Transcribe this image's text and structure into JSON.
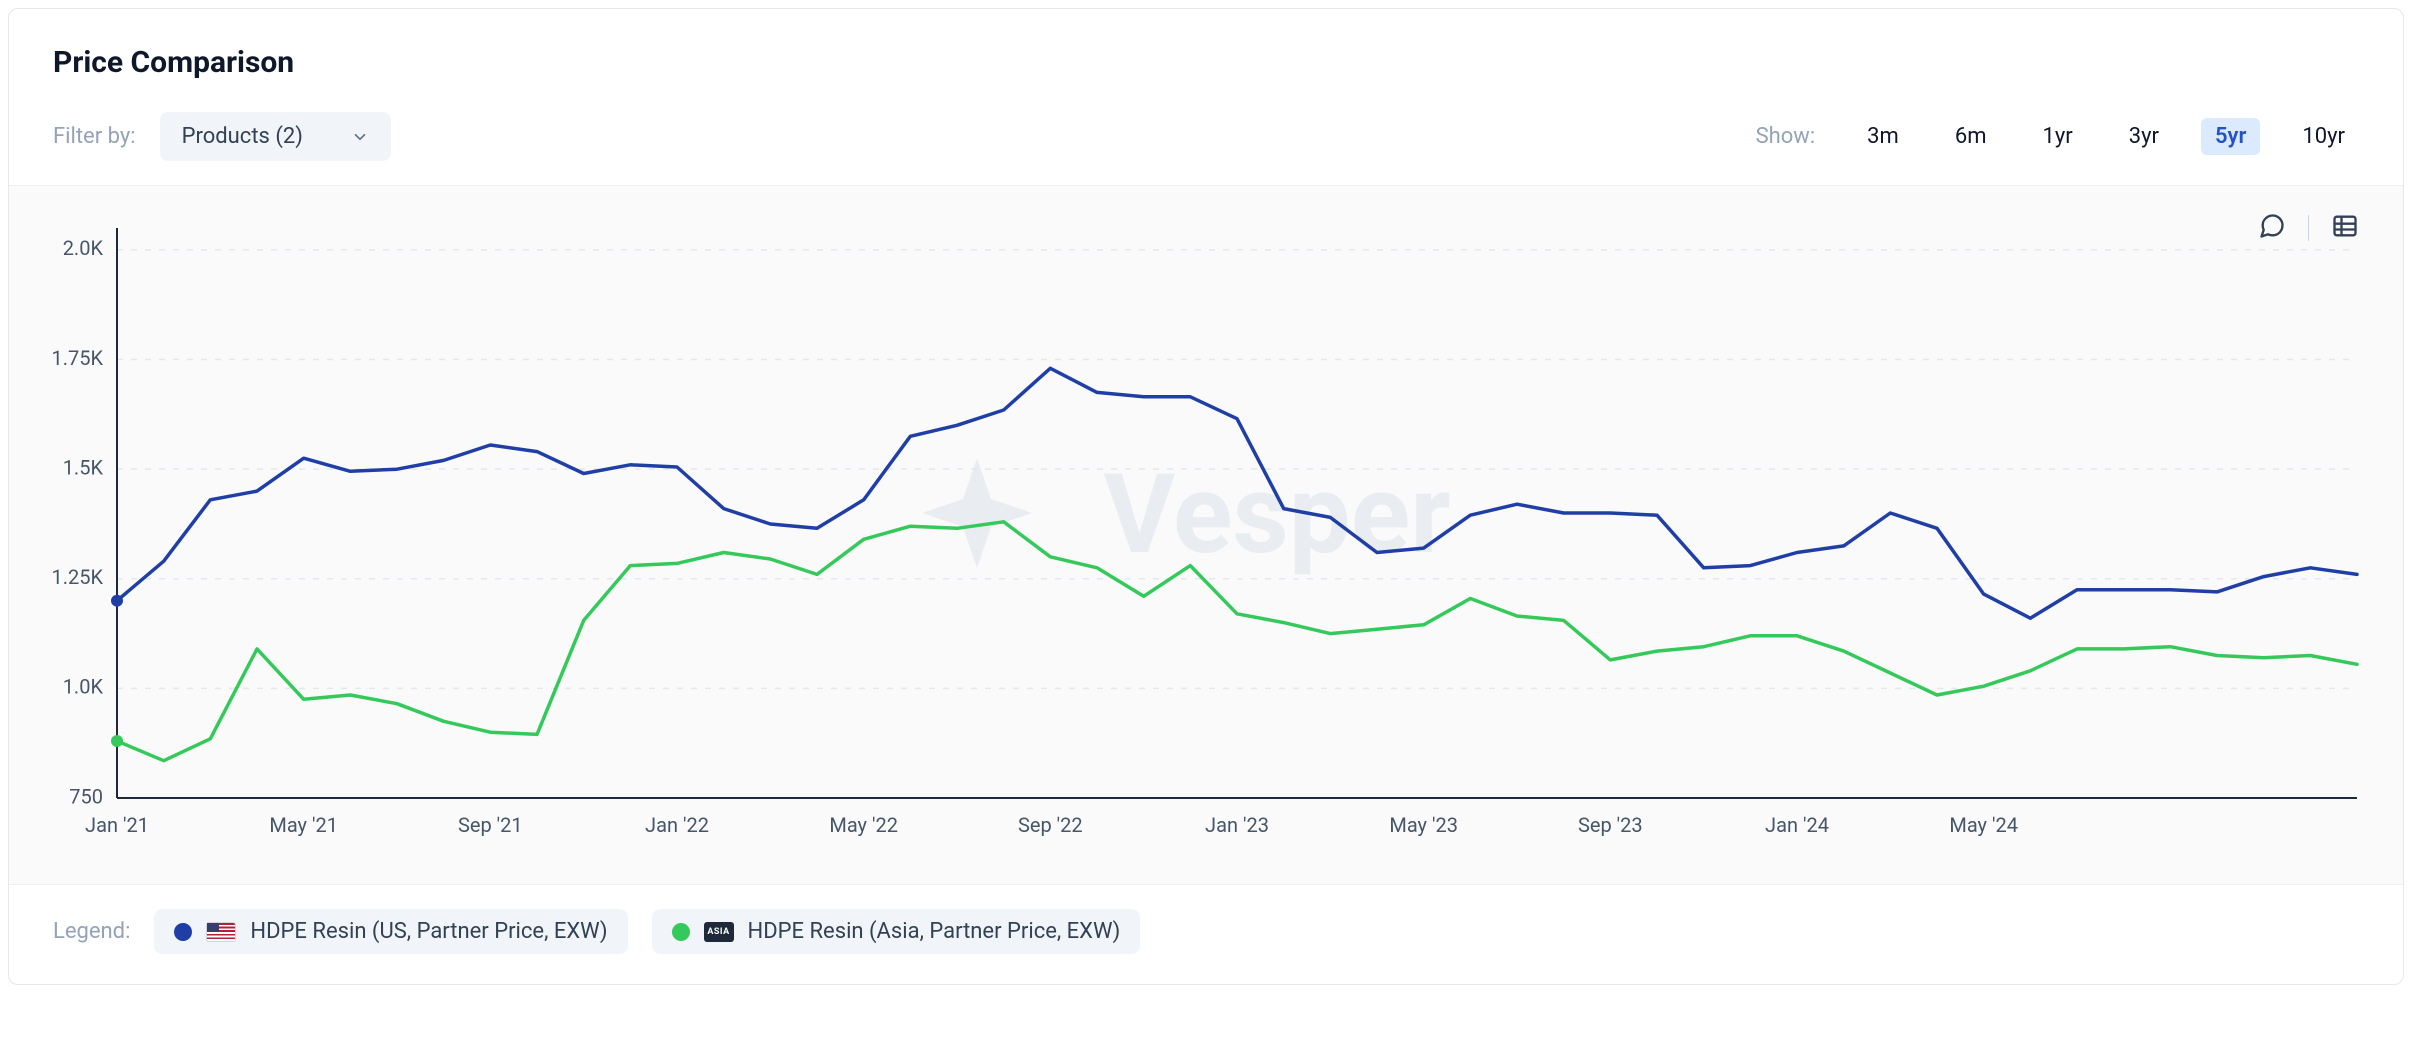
{
  "title": "Price Comparison",
  "filter": {
    "label": "Filter by:",
    "dropdown_label": "Products (2)"
  },
  "range_selector": {
    "label": "Show:",
    "options": [
      "3m",
      "6m",
      "1yr",
      "3yr",
      "5yr",
      "10yr"
    ],
    "selected": "5yr"
  },
  "chart": {
    "type": "line",
    "background_color": "#fafafa",
    "grid_color": "#e2e8f0",
    "axis_color": "#1e293b",
    "tick_font_size": 20,
    "tick_color": "#475569",
    "watermark_text": "Vesper",
    "watermark_color": "#e9edf2",
    "y_axis": {
      "min": 750,
      "max": 2050,
      "ticks": [
        {
          "value": 750,
          "label": "750"
        },
        {
          "value": 1000,
          "label": "1.0K"
        },
        {
          "value": 1250,
          "label": "1.25K"
        },
        {
          "value": 1500,
          "label": "1.5K"
        },
        {
          "value": 1750,
          "label": "1.75K"
        },
        {
          "value": 2000,
          "label": "2.0K"
        }
      ]
    },
    "x_axis": {
      "count": 44,
      "tick_labels": [
        "Jan '21",
        "May '21",
        "Sep '21",
        "Jan '22",
        "May '22",
        "Sep '22",
        "Jan '23",
        "May '23",
        "Sep '23",
        "Jan '24",
        "May '24"
      ],
      "tick_indices": [
        0,
        4,
        8,
        12,
        16,
        20,
        24,
        28,
        32,
        36,
        40
      ]
    },
    "series": [
      {
        "name": "HDPE Resin (US, Partner Price, EXW)",
        "color": "#1f3fa6",
        "flag": "us",
        "values": [
          1200,
          1290,
          1430,
          1450,
          1525,
          1495,
          1500,
          1520,
          1555,
          1540,
          1490,
          1510,
          1505,
          1410,
          1375,
          1365,
          1430,
          1575,
          1600,
          1635,
          1730,
          1675,
          1665,
          1665,
          1615,
          1410,
          1390,
          1310,
          1320,
          1395,
          1420,
          1400,
          1400,
          1395,
          1275,
          1280,
          1310,
          1325,
          1400,
          1365,
          1215,
          1160,
          1225,
          1225
        ]
      },
      {
        "name": "HDPE Resin (Asia, Partner Price, EXW)",
        "color": "#34c95a",
        "flag": "asia",
        "values": [
          880,
          835,
          885,
          1090,
          975,
          985,
          965,
          925,
          900,
          895,
          1155,
          1280,
          1285,
          1310,
          1295,
          1260,
          1340,
          1370,
          1365,
          1380,
          1300,
          1275,
          1210,
          1280,
          1170,
          1150,
          1125,
          1135,
          1145,
          1205,
          1165,
          1155,
          1065,
          1085,
          1095,
          1120,
          1120,
          1085,
          1035,
          985,
          1005,
          1040,
          1090,
          1090
        ]
      }
    ],
    "extra_tail": {
      "comment": "short trailing segment visible after last x tick region",
      "series": [
        [
          1225,
          1220,
          1255,
          1275,
          1260
        ],
        [
          1095,
          1075,
          1070,
          1075,
          1055
        ]
      ]
    }
  },
  "legend": {
    "label": "Legend:",
    "items": [
      {
        "color": "#1f3fa6",
        "flag": "us",
        "text": "HDPE Resin (US, Partner Price, EXW)"
      },
      {
        "color": "#34c95a",
        "flag": "asia",
        "text": "HDPE Resin (Asia, Partner Price, EXW)"
      }
    ]
  }
}
